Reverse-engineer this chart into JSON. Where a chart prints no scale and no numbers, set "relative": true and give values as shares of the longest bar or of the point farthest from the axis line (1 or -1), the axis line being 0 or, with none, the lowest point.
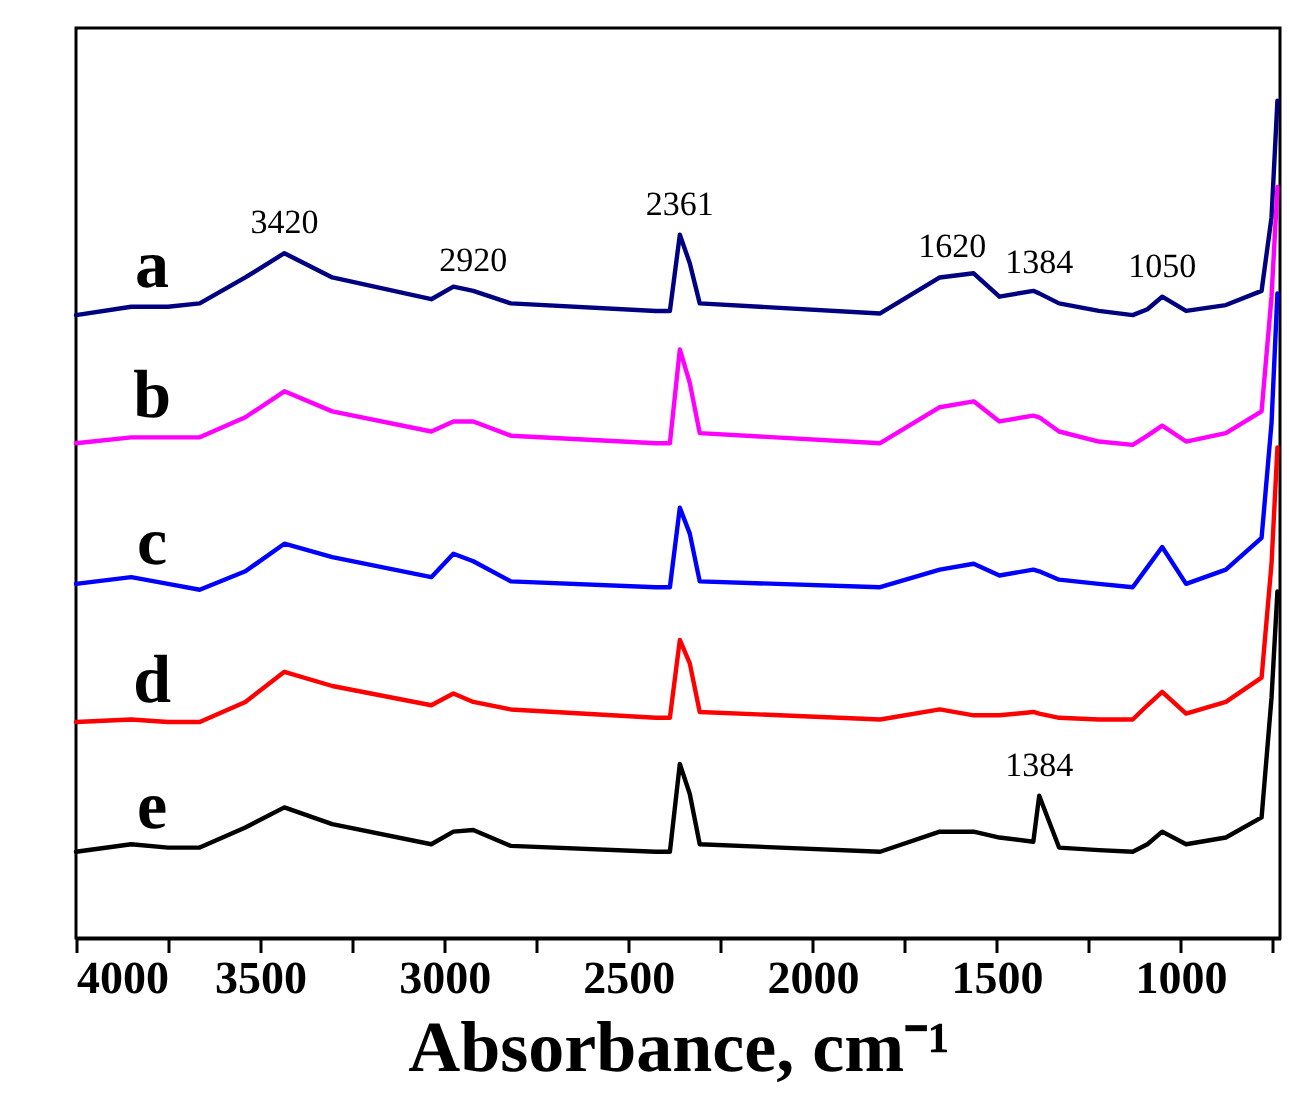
{
  "chart_data": {
    "type": "line",
    "xlabel": "Absorbance, cm⁻¹",
    "relative": true,
    "tick_labels": "x",
    "xlim": [
      4000,
      730
    ],
    "xticks": [
      4000,
      {
        "value": 3750,
        "label": null
      },
      3500,
      {
        "value": 3250,
        "label": null
      },
      3000,
      {
        "value": 2750,
        "label": null
      },
      2500,
      {
        "value": 2250,
        "label": null
      },
      2000,
      {
        "value": 1750,
        "label": null
      },
      1500,
      {
        "value": 1250,
        "label": null
      },
      1000,
      {
        "value": 750,
        "label": null
      }
    ],
    "x": [
      4000,
      3850,
      3750,
      3664,
      3540,
      3434,
      3304,
      3035,
      2975,
      2921,
      2819,
      2425,
      2387,
      2360,
      2333,
      2306,
      1816,
      1654,
      1562,
      1492,
      1400,
      1384,
      1330,
      1222,
      1130,
      1090,
      1050,
      985,
      877,
      780,
      753,
      737
    ],
    "series": [
      {
        "name": "a",
        "color": "#000080",
        "values": [
          0.744,
          0.754,
          0.754,
          0.758,
          0.789,
          0.818,
          0.789,
          0.763,
          0.778,
          0.773,
          0.758,
          0.749,
          0.749,
          0.84,
          0.806,
          0.758,
          0.746,
          0.789,
          0.794,
          0.766,
          0.773,
          0.77,
          0.758,
          0.749,
          0.744,
          0.751,
          0.766,
          0.749,
          0.756,
          0.773,
          0.861,
          1
        ]
      },
      {
        "name": "b",
        "color": "#ff00ff",
        "values": [
          0.591,
          0.598,
          0.598,
          0.598,
          0.622,
          0.653,
          0.629,
          0.605,
          0.617,
          0.617,
          0.6,
          0.591,
          0.591,
          0.703,
          0.663,
          0.603,
          0.591,
          0.634,
          0.641,
          0.617,
          0.624,
          0.622,
          0.605,
          0.593,
          0.589,
          0.6,
          0.612,
          0.593,
          0.603,
          0.629,
          0.766,
          0.897
        ]
      },
      {
        "name": "c",
        "color": "#0000ff",
        "values": [
          0.423,
          0.431,
          0.423,
          0.416,
          0.438,
          0.471,
          0.455,
          0.431,
          0.459,
          0.45,
          0.426,
          0.419,
          0.419,
          0.514,
          0.483,
          0.426,
          0.419,
          0.44,
          0.447,
          0.433,
          0.44,
          0.438,
          0.428,
          0.423,
          0.419,
          0.443,
          0.467,
          0.423,
          0.44,
          0.478,
          0.615,
          0.77
        ]
      },
      {
        "name": "d",
        "color": "#ff0000",
        "values": [
          0.258,
          0.261,
          0.258,
          0.258,
          0.282,
          0.318,
          0.301,
          0.278,
          0.292,
          0.282,
          0.273,
          0.263,
          0.263,
          0.356,
          0.328,
          0.27,
          0.261,
          0.273,
          0.266,
          0.266,
          0.27,
          0.268,
          0.263,
          0.261,
          0.261,
          0.278,
          0.294,
          0.268,
          0.282,
          0.311,
          0.447,
          0.586
        ]
      },
      {
        "name": "e",
        "color": "#000000",
        "values": [
          0.103,
          0.112,
          0.108,
          0.108,
          0.132,
          0.156,
          0.136,
          0.112,
          0.127,
          0.129,
          0.11,
          0.103,
          0.103,
          0.208,
          0.172,
          0.112,
          0.103,
          0.127,
          0.127,
          0.12,
          0.115,
          0.17,
          0.108,
          0.105,
          0.103,
          0.112,
          0.127,
          0.112,
          0.12,
          0.144,
          0.287,
          0.414
        ]
      }
    ],
    "annotations": [
      {
        "text": "3420",
        "x": 3434,
        "y": 0.818
      },
      {
        "text": "2920",
        "x": 2921,
        "y": 0.773
      },
      {
        "text": "2361",
        "x": 2360,
        "y": 0.84
      },
      {
        "text": "1620",
        "x": 1620,
        "y": 0.79
      },
      {
        "text": "1384",
        "x": 1384,
        "y": 0.77
      },
      {
        "text": "1050",
        "x": 1050,
        "y": 0.766
      },
      {
        "text": "1384",
        "x": 1384,
        "y": 0.17
      }
    ]
  }
}
